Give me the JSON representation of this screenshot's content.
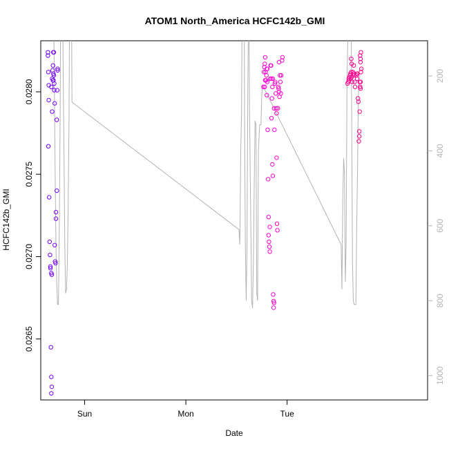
{
  "chart_data": {
    "type": "scatter",
    "title": "ATOM1 North_America HCFC142b_GMI",
    "xlabel": "Date",
    "ylabel": "HCFC142b_GMI",
    "x_unit": "hours from Saturday 00:00",
    "xlim": [
      13.6,
      105.3
    ],
    "x_ticks": [
      {
        "label": "Sun",
        "x": 24
      },
      {
        "label": "Mon",
        "x": 48
      },
      {
        "label": "Tue",
        "x": 72
      }
    ],
    "ylim": [
      0.02613,
      0.02831
    ],
    "y_ticks": [
      0.0265,
      0.027,
      0.0275,
      0.028
    ],
    "y_tick_labels": [
      "0.0265",
      "0.0270",
      "0.0275",
      "0.0280"
    ],
    "right_axis": {
      "ticks": [
        200,
        400,
        600,
        800,
        1000
      ],
      "range": [
        1065,
        106
      ],
      "color": "#b3b3b3",
      "line_data": [
        [
          15.9,
          -500
        ],
        [
          16.2,
          -500
        ],
        [
          16.5,
          -200
        ],
        [
          16.8,
          200
        ],
        [
          17.0,
          450
        ],
        [
          17.2,
          650
        ],
        [
          17.4,
          760
        ],
        [
          17.6,
          810
        ],
        [
          17.8,
          810
        ],
        [
          18.0,
          600
        ],
        [
          18.2,
          300
        ],
        [
          18.4,
          -200
        ],
        [
          18.7,
          -200
        ],
        [
          18.9,
          180
        ],
        [
          19.1,
          400
        ],
        [
          19.3,
          650
        ],
        [
          19.5,
          780
        ],
        [
          19.7,
          770
        ],
        [
          19.9,
          700
        ],
        [
          20.1,
          550
        ],
        [
          20.3,
          320
        ],
        [
          20.5,
          -100
        ],
        [
          20.8,
          -200
        ],
        [
          21.0,
          270
        ],
        [
          60.6,
          610
        ],
        [
          60.8,
          650
        ],
        [
          61.0,
          400
        ],
        [
          61.2,
          300
        ],
        [
          61.4,
          -100
        ],
        [
          61.8,
          -100
        ],
        [
          61.9,
          300
        ],
        [
          62.1,
          650
        ],
        [
          62.3,
          800
        ],
        [
          62.5,
          650
        ],
        [
          62.7,
          230
        ],
        [
          62.9,
          -50
        ],
        [
          63.1,
          300
        ],
        [
          63.4,
          600
        ],
        [
          63.6,
          800
        ],
        [
          63.8,
          820
        ],
        [
          64.0,
          700
        ],
        [
          64.2,
          500
        ],
        [
          64.4,
          320
        ],
        [
          64.6,
          330
        ],
        [
          64.8,
          780
        ],
        [
          65.0,
          800
        ],
        [
          65.2,
          400
        ],
        [
          65.5,
          330
        ],
        [
          65.8,
          330
        ],
        [
          66.0,
          250
        ],
        [
          66.2,
          225
        ],
        [
          84.8,
          650
        ],
        [
          85.0,
          770
        ],
        [
          85.2,
          520
        ],
        [
          85.4,
          420
        ],
        [
          85.6,
          460
        ],
        [
          85.8,
          750
        ],
        [
          86.0,
          650
        ],
        [
          86.2,
          200
        ],
        [
          86.4,
          100
        ],
        [
          86.8,
          100
        ],
        [
          87.0,
          100
        ],
        [
          87.2,
          100
        ],
        [
          87.3,
          300
        ],
        [
          87.5,
          700
        ],
        [
          87.7,
          800
        ],
        [
          87.9,
          810
        ],
        [
          88.1,
          810
        ],
        [
          88.3,
          810
        ],
        [
          88.5,
          600
        ],
        [
          88.7,
          450
        ],
        [
          88.9,
          250
        ],
        [
          89.1,
          200
        ],
        [
          89.4,
          200
        ]
      ]
    },
    "series": [
      {
        "values": [
          [
            15.3,
            0.02824
          ],
          [
            15.3,
            0.02822
          ],
          [
            15.4,
            0.02812
          ],
          [
            15.5,
            0.02804
          ],
          [
            15.5,
            0.02795
          ],
          [
            15.4,
            0.02767
          ],
          [
            15.6,
            0.02736
          ],
          [
            15.7,
            0.02709
          ],
          [
            15.8,
            0.02701
          ],
          [
            15.9,
            0.02693
          ],
          [
            15.9,
            0.02694
          ],
          [
            16.1,
            0.0269
          ],
          [
            16.2,
            0.02689
          ],
          [
            16.0,
            0.02645
          ],
          [
            16.1,
            0.02627
          ],
          [
            16.2,
            0.02621
          ],
          [
            16.1,
            0.02617
          ],
          [
            16.1,
            0.02803
          ],
          [
            16.3,
            0.02788
          ],
          [
            16.3,
            0.02808
          ],
          [
            16.5,
            0.02816
          ],
          [
            16.4,
            0.02813
          ],
          [
            16.6,
            0.02811
          ],
          [
            16.5,
            0.02807
          ],
          [
            16.6,
            0.02807
          ],
          [
            16.7,
            0.0281
          ],
          [
            16.8,
            0.02805
          ],
          [
            16.8,
            0.02801
          ],
          [
            16.9,
            0.02793
          ],
          [
            16.6,
            0.02824
          ],
          [
            16.7,
            0.02824
          ],
          [
            16.9,
            0.02707
          ],
          [
            17.0,
            0.02697
          ],
          [
            17.1,
            0.02696
          ],
          [
            17.2,
            0.02727
          ],
          [
            17.2,
            0.02723
          ],
          [
            17.4,
            0.0274
          ],
          [
            17.4,
            0.02783
          ],
          [
            17.5,
            0.02801
          ],
          [
            17.6,
            0.02814
          ],
          [
            17.6,
            0.02813
          ]
        ]
      },
      {
        "values": [
          [
            66.4,
            0.02803
          ],
          [
            66.5,
            0.02812
          ],
          [
            66.6,
            0.02815
          ],
          [
            66.7,
            0.02817
          ],
          [
            66.8,
            0.02807
          ],
          [
            66.7,
            0.02803
          ],
          [
            66.8,
            0.02821
          ],
          [
            66.9,
            0.02812
          ],
          [
            67.0,
            0.02807
          ],
          [
            67.1,
            0.0281
          ],
          [
            67.2,
            0.02798
          ],
          [
            67.3,
            0.02806
          ],
          [
            67.3,
            0.02814
          ],
          [
            67.2,
            0.02814
          ],
          [
            67.4,
            0.02777
          ],
          [
            67.5,
            0.02747
          ],
          [
            67.6,
            0.02724
          ],
          [
            67.6,
            0.02713
          ],
          [
            67.7,
            0.02709
          ],
          [
            67.8,
            0.02706
          ],
          [
            67.9,
            0.02703
          ],
          [
            67.9,
            0.02718
          ],
          [
            68.0,
            0.02808
          ],
          [
            68.1,
            0.02816
          ],
          [
            68.2,
            0.02816
          ],
          [
            68.3,
            0.02808
          ],
          [
            68.3,
            0.02784
          ],
          [
            68.4,
            0.02796
          ],
          [
            68.5,
            0.02803
          ],
          [
            68.6,
            0.02808
          ],
          [
            68.5,
            0.02756
          ],
          [
            68.6,
            0.02749
          ],
          [
            68.7,
            0.02677
          ],
          [
            68.8,
            0.02673
          ],
          [
            68.8,
            0.02669
          ],
          [
            68.9,
            0.02672
          ],
          [
            68.9,
            0.0279
          ],
          [
            69.0,
            0.02777
          ],
          [
            69.1,
            0.02805
          ],
          [
            69.2,
            0.02806
          ],
          [
            69.3,
            0.02799
          ],
          [
            69.4,
            0.0279
          ],
          [
            69.5,
            0.02787
          ],
          [
            69.5,
            0.0276
          ],
          [
            69.6,
            0.0272
          ],
          [
            69.7,
            0.02716
          ],
          [
            69.8,
            0.0279
          ],
          [
            69.9,
            0.02803
          ],
          [
            70.0,
            0.02802
          ],
          [
            70.1,
            0.028
          ],
          [
            70.2,
            0.02797
          ],
          [
            70.3,
            0.0281
          ],
          [
            70.4,
            0.02806
          ],
          [
            70.5,
            0.02799
          ],
          [
            70.1,
            0.02818
          ],
          [
            70.6,
            0.0281
          ],
          [
            70.8,
            0.02819
          ],
          [
            70.9,
            0.02821
          ]
        ]
      },
      {
        "values": [
          [
            86.3,
            0.02805
          ],
          [
            86.5,
            0.02806
          ],
          [
            86.6,
            0.02808
          ],
          [
            86.7,
            0.02807
          ],
          [
            86.8,
            0.02809
          ],
          [
            86.9,
            0.0281
          ],
          [
            87.0,
            0.02811
          ],
          [
            87.1,
            0.02808
          ],
          [
            87.2,
            0.02812
          ],
          [
            87.3,
            0.02809
          ],
          [
            87.4,
            0.02806
          ],
          [
            87.2,
            0.0282
          ],
          [
            87.3,
            0.02817
          ],
          [
            87.6,
            0.02812
          ],
          [
            87.8,
            0.02811
          ],
          [
            87.9,
            0.0281
          ],
          [
            88.0,
            0.02806
          ],
          [
            88.1,
            0.02803
          ],
          [
            87.8,
            0.02816
          ],
          [
            88.4,
            0.0281
          ],
          [
            88.5,
            0.02811
          ],
          [
            88.6,
            0.02808
          ],
          [
            88.7,
            0.02811
          ],
          [
            88.8,
            0.02796
          ],
          [
            88.9,
            0.02794
          ],
          [
            89.0,
            0.0277
          ],
          [
            89.1,
            0.02776
          ],
          [
            89.2,
            0.02788
          ],
          [
            89.3,
            0.02803
          ],
          [
            89.4,
            0.02806
          ],
          [
            89.5,
            0.02812
          ],
          [
            89.3,
            0.02822
          ],
          [
            89.4,
            0.02818
          ],
          [
            89.5,
            0.02824
          ],
          [
            89.4,
            0.0282
          ],
          [
            89.6,
            0.02814
          ],
          [
            89.3,
            0.02803
          ],
          [
            89.2,
            0.02806
          ],
          [
            89.4,
            0.02802
          ],
          [
            89.1,
            0.02773
          ]
        ]
      }
    ]
  }
}
